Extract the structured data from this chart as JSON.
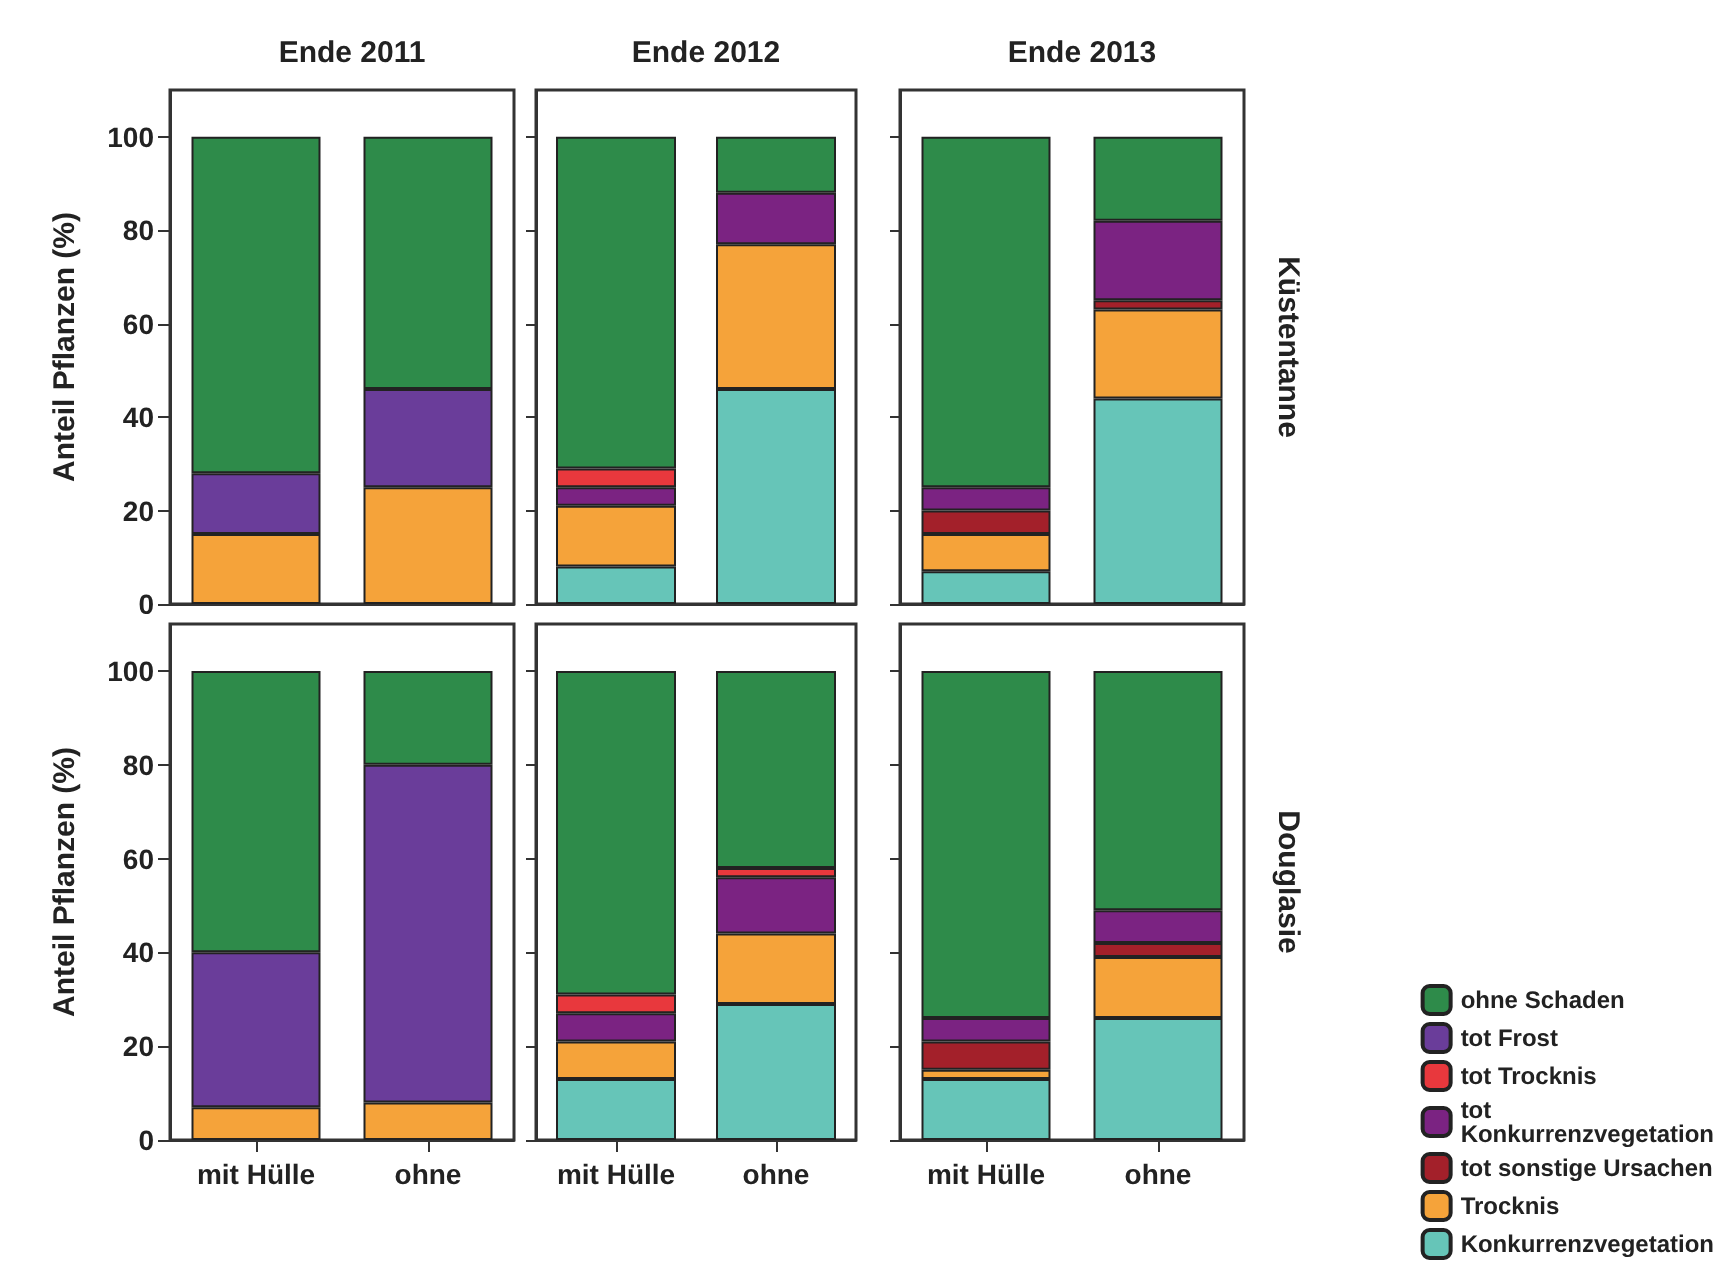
{
  "chart_data": [
    {
      "type": "bar",
      "stacked": true,
      "title": "Ende 2011",
      "ylabel": "Anteil Pflanzen (%)",
      "tick_labels": "y",
      "categories": [
        "mit Hülle",
        "ohne"
      ],
      "ylim": [
        0,
        110
      ],
      "yticks": [
        0,
        20,
        40,
        60,
        80,
        100
      ],
      "series": [
        {
          "color": "#f5a33a",
          "values": [
            15,
            25
          ]
        },
        {
          "color": "#6a3d9a",
          "values": [
            13,
            21
          ]
        },
        {
          "color": "#2e8b4a",
          "values": [
            72,
            54
          ]
        }
      ]
    },
    {
      "type": "bar",
      "stacked": true,
      "title": "Ende 2012",
      "tick_labels": false,
      "categories": [
        "mit Hülle",
        "ohne"
      ],
      "ylim": [
        0,
        110
      ],
      "yticks": [
        0,
        20,
        40,
        60,
        80,
        100
      ],
      "series": [
        {
          "color": "#66c5b8",
          "values": [
            8,
            46
          ]
        },
        {
          "color": "#f5a33a",
          "values": [
            13,
            31
          ]
        },
        {
          "color": "#7b2382",
          "values": [
            4,
            11
          ]
        },
        {
          "color": "#e8383d",
          "values": [
            4,
            null
          ]
        },
        {
          "color": "#2e8b4a",
          "values": [
            71,
            12
          ]
        }
      ]
    },
    {
      "type": "bar",
      "stacked": true,
      "title": "Ende 2013",
      "y2label": "Küstentanne",
      "tick_labels": false,
      "categories": [
        "mit Hülle",
        "ohne"
      ],
      "ylim": [
        0,
        110
      ],
      "yticks": [
        0,
        20,
        40,
        60,
        80,
        100
      ],
      "series": [
        {
          "color": "#66c5b8",
          "values": [
            7,
            44
          ]
        },
        {
          "color": "#f5a33a",
          "values": [
            8,
            19
          ]
        },
        {
          "color": "#a3202a",
          "values": [
            5,
            2
          ]
        },
        {
          "color": "#7b2382",
          "values": [
            5,
            17
          ]
        },
        {
          "color": "#2e8b4a",
          "values": [
            75,
            18
          ]
        }
      ]
    },
    {
      "type": "bar",
      "stacked": true,
      "ylabel": "Anteil Pflanzen (%)",
      "categories": [
        "mit Hülle",
        "ohne"
      ],
      "ylim": [
        0,
        110
      ],
      "yticks": [
        0,
        20,
        40,
        60,
        80,
        100
      ],
      "series": [
        {
          "color": "#f5a33a",
          "values": [
            7,
            8
          ]
        },
        {
          "color": "#6a3d9a",
          "values": [
            33,
            72
          ]
        },
        {
          "color": "#2e8b4a",
          "values": [
            60,
            20
          ]
        }
      ]
    },
    {
      "type": "bar",
      "stacked": true,
      "tick_labels": "x",
      "categories": [
        "mit Hülle",
        "ohne"
      ],
      "ylim": [
        0,
        110
      ],
      "yticks": [
        0,
        20,
        40,
        60,
        80,
        100
      ],
      "series": [
        {
          "color": "#66c5b8",
          "values": [
            13,
            29
          ]
        },
        {
          "color": "#f5a33a",
          "values": [
            8,
            15
          ]
        },
        {
          "color": "#7b2382",
          "values": [
            6,
            12
          ]
        },
        {
          "color": "#e8383d",
          "values": [
            4,
            2
          ]
        },
        {
          "color": "#2e8b4a",
          "values": [
            69,
            42
          ]
        }
      ]
    },
    {
      "type": "bar",
      "stacked": true,
      "y2label": "Douglasie",
      "tick_labels": "x",
      "legend": "bottom right",
      "categories": [
        "mit Hülle",
        "ohne"
      ],
      "ylim": [
        0,
        110
      ],
      "yticks": [
        0,
        20,
        40,
        60,
        80,
        100
      ],
      "series": [
        {
          "name": "Konkurrenzvegetation",
          "color": "#66c5b8",
          "values": [
            13,
            26
          ]
        },
        {
          "name": "Trocknis",
          "color": "#f5a33a",
          "values": [
            2,
            13
          ]
        },
        {
          "name": "tot sonstige Ursachen",
          "color": "#a3202a",
          "values": [
            6,
            3
          ]
        },
        {
          "name": "tot Konkurrenzvegetation",
          "color": "#7b2382",
          "values": [
            5,
            7
          ]
        },
        {
          "name": "tot Trocknis",
          "color": "#e8383d",
          "values": [
            null,
            null
          ]
        },
        {
          "name": "tot Frost",
          "color": "#6a3d9a",
          "values": [
            null,
            null
          ]
        },
        {
          "name": "ohne Schaden",
          "color": "#2e8b4a",
          "values": [
            74,
            51
          ]
        }
      ]
    }
  ]
}
